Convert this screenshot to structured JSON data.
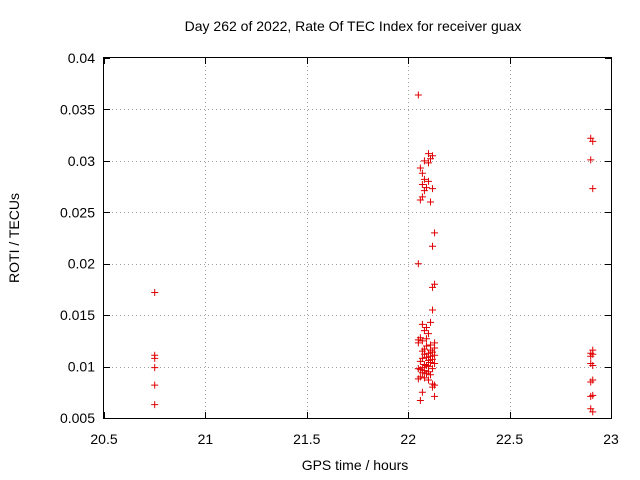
{
  "chart_data": {
    "type": "scatter",
    "title": "Day 262 of 2022, Rate Of TEC Index for receiver guax",
    "xlabel": "GPS time / hours",
    "ylabel": "ROTI / TECUs",
    "xlim": [
      20.5,
      23
    ],
    "ylim": [
      0.005,
      0.04
    ],
    "xticks": [
      20.5,
      21,
      21.5,
      22,
      22.5,
      23
    ],
    "xtick_labels": [
      "20.5",
      "21",
      "21.5",
      "22",
      "22.5",
      "23"
    ],
    "yticks": [
      0.005,
      0.01,
      0.015,
      0.02,
      0.025,
      0.03,
      0.035,
      0.04
    ],
    "ytick_labels": [
      "0.005",
      "0.01",
      "0.015",
      "0.02",
      "0.025",
      "0.03",
      "0.035",
      "0.04"
    ],
    "grid": true,
    "marker": "+",
    "series": [
      {
        "color": "#e00000",
        "points": [
          [
            20.75,
            0.0172
          ],
          [
            20.75,
            0.0111
          ],
          [
            20.75,
            0.0108
          ],
          [
            20.75,
            0.0099
          ],
          [
            20.75,
            0.0082
          ],
          [
            20.75,
            0.0063
          ],
          [
            22.05,
            0.0364
          ],
          [
            22.1,
            0.0307
          ],
          [
            22.12,
            0.0305
          ],
          [
            22.11,
            0.0302
          ],
          [
            22.08,
            0.03
          ],
          [
            22.1,
            0.0298
          ],
          [
            22.06,
            0.0293
          ],
          [
            22.07,
            0.0288
          ],
          [
            22.08,
            0.0282
          ],
          [
            22.1,
            0.028
          ],
          [
            22.07,
            0.0277
          ],
          [
            22.09,
            0.0274
          ],
          [
            22.12,
            0.0273
          ],
          [
            22.08,
            0.0271
          ],
          [
            22.07,
            0.0265
          ],
          [
            22.06,
            0.0262
          ],
          [
            22.11,
            0.026
          ],
          [
            22.13,
            0.023
          ],
          [
            22.12,
            0.0217
          ],
          [
            22.05,
            0.02
          ],
          [
            22.13,
            0.018
          ],
          [
            22.12,
            0.0177
          ],
          [
            22.12,
            0.0155
          ],
          [
            22.11,
            0.0143
          ],
          [
            22.07,
            0.0141
          ],
          [
            22.09,
            0.0138
          ],
          [
            22.08,
            0.0135
          ],
          [
            22.1,
            0.0132
          ],
          [
            22.06,
            0.0128
          ],
          [
            22.09,
            0.0127
          ],
          [
            22.05,
            0.0126
          ],
          [
            22.07,
            0.0125
          ],
          [
            22.05,
            0.0123
          ],
          [
            22.13,
            0.0123
          ],
          [
            22.11,
            0.0121
          ],
          [
            22.09,
            0.012
          ],
          [
            22.13,
            0.0118
          ],
          [
            22.08,
            0.0117
          ],
          [
            22.11,
            0.0116
          ],
          [
            22.07,
            0.0115
          ],
          [
            22.12,
            0.0114
          ],
          [
            22.1,
            0.0113
          ],
          [
            22.08,
            0.0112
          ],
          [
            22.13,
            0.0111
          ],
          [
            22.11,
            0.011
          ],
          [
            22.09,
            0.0109
          ],
          [
            22.07,
            0.0108
          ],
          [
            22.12,
            0.0107
          ],
          [
            22.1,
            0.0106
          ],
          [
            22.06,
            0.0105
          ],
          [
            22.11,
            0.0104
          ],
          [
            22.13,
            0.0103
          ],
          [
            22.08,
            0.0102
          ],
          [
            22.09,
            0.0101
          ],
          [
            22.1,
            0.01
          ],
          [
            22.07,
            0.0099
          ],
          [
            22.05,
            0.0098
          ],
          [
            22.12,
            0.0098
          ],
          [
            22.06,
            0.0097
          ],
          [
            22.08,
            0.0096
          ],
          [
            22.1,
            0.0095
          ],
          [
            22.07,
            0.0094
          ],
          [
            22.09,
            0.0093
          ],
          [
            22.11,
            0.0092
          ],
          [
            22.06,
            0.009
          ],
          [
            22.08,
            0.0089
          ],
          [
            22.05,
            0.0088
          ],
          [
            22.1,
            0.0087
          ],
          [
            22.12,
            0.0083
          ],
          [
            22.13,
            0.0082
          ],
          [
            22.12,
            0.008
          ],
          [
            22.07,
            0.0075
          ],
          [
            22.13,
            0.0071
          ],
          [
            22.06,
            0.0067
          ],
          [
            22.9,
            0.0322
          ],
          [
            22.91,
            0.0319
          ],
          [
            22.9,
            0.0301
          ],
          [
            22.91,
            0.0273
          ],
          [
            22.91,
            0.0116
          ],
          [
            22.9,
            0.0113
          ],
          [
            22.91,
            0.0112
          ],
          [
            22.9,
            0.011
          ],
          [
            22.9,
            0.0103
          ],
          [
            22.91,
            0.0101
          ],
          [
            22.91,
            0.0087
          ],
          [
            22.9,
            0.0085
          ],
          [
            22.91,
            0.0072
          ],
          [
            22.9,
            0.0071
          ],
          [
            22.9,
            0.0059
          ],
          [
            22.91,
            0.0056
          ]
        ]
      }
    ]
  }
}
